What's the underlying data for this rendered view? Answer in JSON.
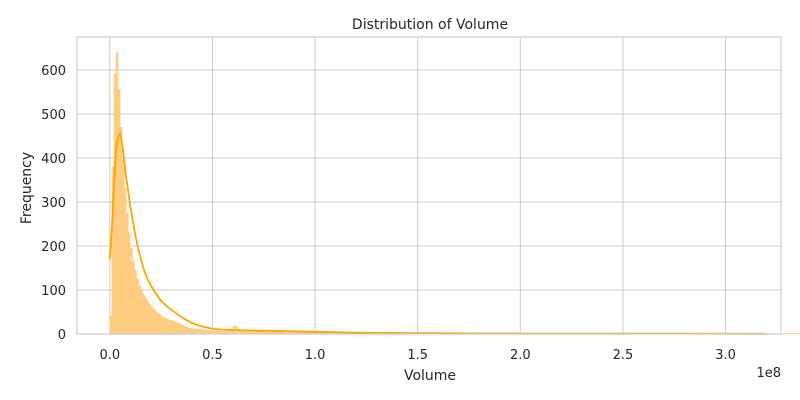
{
  "chart_data": {
    "type": "bar",
    "subtype": "histogram-with-kde",
    "title": "Distribution of Volume",
    "xlabel": "Volume",
    "ylabel": "Frequency",
    "x_offset_label": "1e8",
    "xlim": [
      -0.16,
      3.27
    ],
    "ylim": [
      0,
      675
    ],
    "x_ticks": [
      0.0,
      0.5,
      1.0,
      1.5,
      2.0,
      2.5,
      3.0
    ],
    "x_tick_labels": [
      "0.0",
      "0.5",
      "1.0",
      "1.5",
      "2.0",
      "2.5",
      "3.0"
    ],
    "y_ticks": [
      0,
      100,
      200,
      300,
      400,
      500,
      600
    ],
    "y_tick_labels": [
      "0",
      "100",
      "200",
      "300",
      "400",
      "500",
      "600"
    ],
    "grid": true,
    "legend": "none",
    "colors": {
      "bar_fill": "#ffd08a",
      "bar_edge": "#ffbf5c",
      "kde": "#ffa500",
      "grid": "#cccccc"
    },
    "bin_width": 0.01,
    "bins_x": [
      0.0,
      0.01,
      0.02,
      0.03,
      0.04,
      0.05,
      0.06,
      0.07,
      0.08,
      0.09,
      0.1,
      0.11,
      0.12,
      0.13,
      0.14,
      0.15,
      0.16,
      0.17,
      0.18,
      0.19,
      0.2,
      0.21,
      0.22,
      0.23,
      0.24,
      0.25,
      0.26,
      0.27,
      0.28,
      0.29,
      0.3,
      0.31,
      0.32,
      0.33,
      0.34,
      0.35,
      0.36,
      0.37,
      0.38,
      0.39,
      0.4,
      0.42,
      0.44,
      0.46,
      0.48,
      0.5,
      0.52,
      0.54,
      0.56,
      0.58,
      0.6,
      0.62,
      0.64,
      0.66,
      0.68,
      0.7,
      0.75,
      0.8,
      0.85,
      0.9,
      0.95,
      1.0,
      1.05,
      1.1,
      1.15,
      1.2,
      1.3,
      1.4,
      1.5,
      1.6,
      1.7,
      1.8,
      1.9,
      2.0,
      2.2,
      2.4,
      2.6,
      2.8,
      3.0,
      3.2
    ],
    "bins_count": [
      40,
      380,
      590,
      640,
      555,
      470,
      395,
      330,
      275,
      230,
      195,
      165,
      145,
      125,
      110,
      100,
      90,
      82,
      75,
      68,
      62,
      56,
      52,
      48,
      44,
      40,
      37,
      35,
      33,
      31,
      30,
      28,
      26,
      24,
      22,
      20,
      18,
      16,
      14,
      13,
      12,
      11,
      10,
      9,
      8,
      7,
      7,
      6,
      6,
      6,
      18,
      6,
      5,
      5,
      5,
      5,
      4,
      4,
      3,
      3,
      3,
      3,
      3,
      2,
      2,
      2,
      1,
      1,
      1,
      1,
      1,
      1,
      1,
      1,
      1,
      1,
      1,
      1,
      1,
      1
    ],
    "kde_x": [
      0.0,
      0.01,
      0.02,
      0.03,
      0.04,
      0.05,
      0.06,
      0.07,
      0.08,
      0.1,
      0.12,
      0.14,
      0.16,
      0.18,
      0.2,
      0.22,
      0.25,
      0.28,
      0.3,
      0.33,
      0.36,
      0.4,
      0.45,
      0.5,
      0.55,
      0.6,
      0.7,
      0.8,
      0.9,
      1.0,
      1.1,
      1.2,
      1.4,
      1.6,
      1.8,
      2.0,
      2.4,
      2.8,
      3.2
    ],
    "kde_y": [
      170,
      240,
      340,
      420,
      448,
      455,
      432,
      395,
      355,
      290,
      235,
      190,
      155,
      128,
      110,
      95,
      75,
      62,
      55,
      45,
      35,
      25,
      17,
      12,
      10,
      9,
      8,
      7,
      6,
      5,
      4,
      3,
      2.2,
      1.8,
      1.5,
      1.2,
      1.0,
      0.8,
      0.6
    ]
  }
}
